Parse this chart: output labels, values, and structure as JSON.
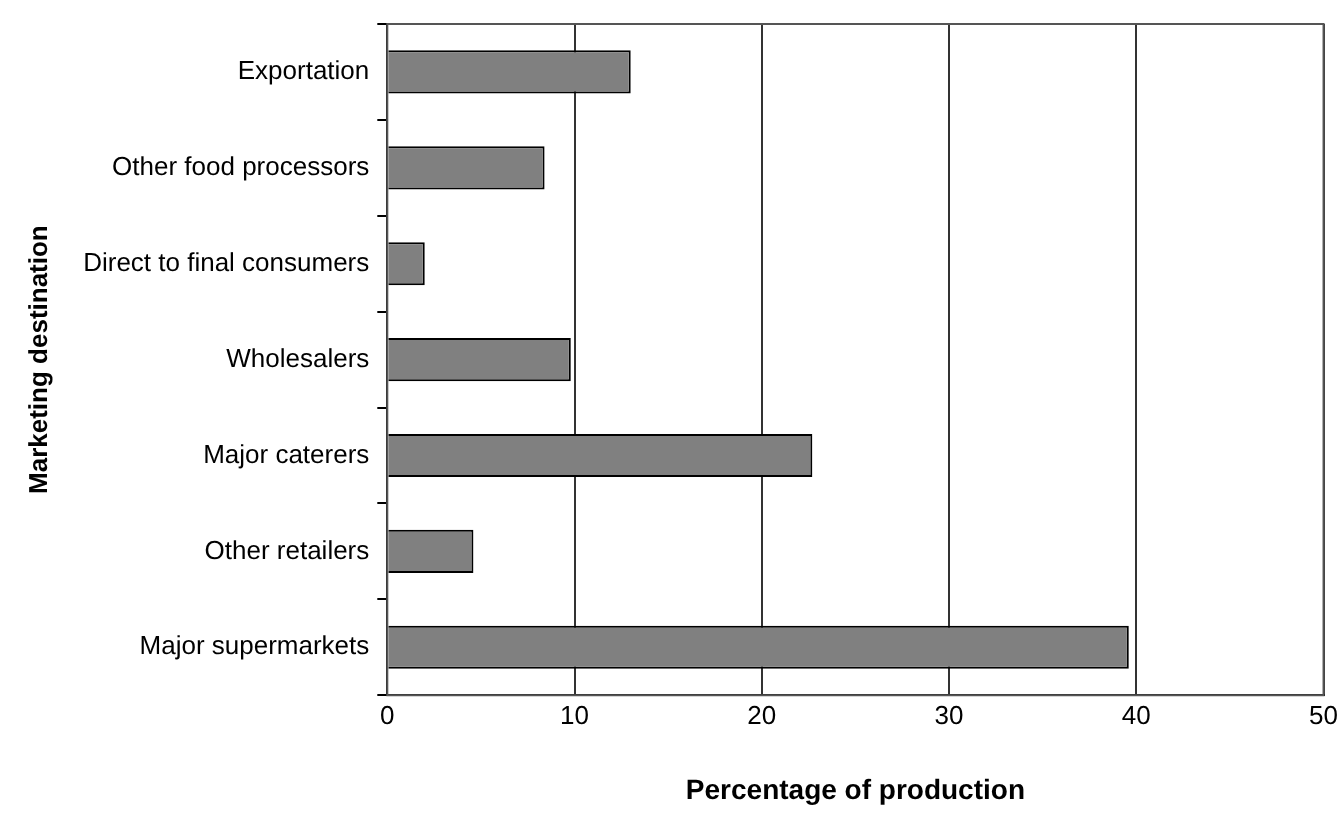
{
  "chart_data": {
    "type": "bar",
    "orientation": "horizontal",
    "xlabel": "Percentage of production",
    "ylabel": "Marketing destination",
    "categories": [
      "Exportation",
      "Other food processors",
      "Direct to final consumers",
      "Wholesalers",
      "Major caterers",
      "Other retailers",
      "Major supermarkets"
    ],
    "values": [
      13.0,
      8.4,
      2.0,
      9.8,
      22.7,
      4.6,
      39.6
    ],
    "color": "#808080",
    "xlim": [
      0,
      50
    ],
    "xticks": [
      0,
      10,
      20,
      30,
      40,
      50
    ],
    "grid": "x",
    "legend": false
  }
}
